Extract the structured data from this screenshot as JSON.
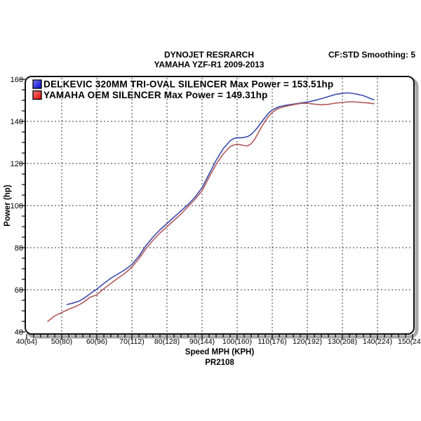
{
  "header": {
    "smoothing_label": "CF:STD Smoothing: 5"
  },
  "chart_data": {
    "type": "line",
    "title": "DYNOJET RESRARCH",
    "subtitle": "YAMAHA YZF-R1 2009-2013",
    "xlabel": "Speed MPH (KPH)",
    "ylabel": "Power (hp)",
    "run_id": "PR2108",
    "xlim": [
      40,
      150
    ],
    "ylim": [
      40,
      160
    ],
    "x_tick_values": [
      40,
      50,
      60,
      70,
      80,
      90,
      100,
      110,
      120,
      130,
      140,
      150
    ],
    "x_tick_labels": [
      "40(64)",
      "50(80)",
      "60(96)",
      "70(112)",
      "80(128)",
      "90(144)",
      "100(160)",
      "110(176)",
      "120(192)",
      "130(208)",
      "140(224)",
      "150(240)"
    ],
    "y_tick_values": [
      40,
      60,
      80,
      100,
      120,
      140,
      160
    ],
    "x_minor_step": 2,
    "y_minor_step": 5,
    "grid": "dashed",
    "legend_position": "top-left",
    "series": [
      {
        "name": "DELKEVIC 320MM TRI-OVAL SILENCER",
        "legend_label": "DELKEVIC 320MM TRI-OVAL SILENCER  Max Power = 153.51hp",
        "max_power_hp": 153.51,
        "color": "#3a4aa8",
        "swatch": [
          "#7d7dff",
          "#0000c8"
        ],
        "points": [
          [
            51.5,
            53
          ],
          [
            52,
            53.2
          ],
          [
            53,
            53.6
          ],
          [
            54,
            54.1
          ],
          [
            55,
            54.7
          ],
          [
            56,
            55.6
          ],
          [
            57,
            56.8
          ],
          [
            58,
            58
          ],
          [
            59,
            59.2
          ],
          [
            60,
            60.3
          ],
          [
            62,
            63
          ],
          [
            64,
            65.5
          ],
          [
            66,
            67.5
          ],
          [
            68,
            69.5
          ],
          [
            70,
            72
          ],
          [
            72,
            76
          ],
          [
            74,
            81
          ],
          [
            76,
            85
          ],
          [
            78,
            88.5
          ],
          [
            80,
            91.5
          ],
          [
            82,
            94.5
          ],
          [
            84,
            97.5
          ],
          [
            86,
            100.5
          ],
          [
            88,
            104
          ],
          [
            90,
            108.5
          ],
          [
            92,
            115
          ],
          [
            94,
            121.5
          ],
          [
            96,
            127
          ],
          [
            98,
            130.8
          ],
          [
            99,
            131.8
          ],
          [
            100,
            132.3
          ],
          [
            101,
            132.2
          ],
          [
            102,
            132.4
          ],
          [
            103,
            132.8
          ],
          [
            104,
            133.8
          ],
          [
            105,
            135.5
          ],
          [
            106,
            137.5
          ],
          [
            107,
            139.8
          ],
          [
            108,
            142
          ],
          [
            109,
            144
          ],
          [
            110,
            145.4
          ],
          [
            111,
            146.3
          ],
          [
            112,
            147
          ],
          [
            114,
            147.7
          ],
          [
            116,
            148.2
          ],
          [
            118,
            148.7
          ],
          [
            120,
            149.2
          ],
          [
            122,
            149.9
          ],
          [
            124,
            150.8
          ],
          [
            126,
            151.8
          ],
          [
            128,
            152.8
          ],
          [
            130,
            153.3
          ],
          [
            131,
            153.5
          ],
          [
            132,
            153.5
          ],
          [
            134,
            153
          ],
          [
            136,
            152.2
          ],
          [
            137,
            151.6
          ],
          [
            138,
            150.8
          ],
          [
            139,
            150.3
          ]
        ]
      },
      {
        "name": "YAMAHA OEM SILENCER",
        "legend_label": "YAMAHA OEM SILENCER Max Power = 149.31hp",
        "max_power_hp": 149.31,
        "color": "#b35a5a",
        "swatch": [
          "#ff8080",
          "#dd0000"
        ],
        "points": [
          [
            46,
            45
          ],
          [
            47,
            46.3
          ],
          [
            48,
            47.6
          ],
          [
            49,
            48.4
          ],
          [
            50,
            49.2
          ],
          [
            51,
            50
          ],
          [
            52,
            50.8
          ],
          [
            53,
            51.4
          ],
          [
            54,
            52.1
          ],
          [
            55,
            52.9
          ],
          [
            56,
            53.9
          ],
          [
            57,
            55.1
          ],
          [
            58,
            56.4
          ],
          [
            59,
            57
          ],
          [
            60,
            57.6
          ],
          [
            62,
            60.5
          ],
          [
            64,
            63
          ],
          [
            66,
            65.5
          ],
          [
            68,
            67.8
          ],
          [
            70,
            70.8
          ],
          [
            72,
            74.8
          ],
          [
            74,
            79.5
          ],
          [
            76,
            83.5
          ],
          [
            78,
            87
          ],
          [
            80,
            90
          ],
          [
            82,
            93
          ],
          [
            84,
            96
          ],
          [
            86,
            99.5
          ],
          [
            88,
            103
          ],
          [
            90,
            107
          ],
          [
            92,
            113.5
          ],
          [
            94,
            119.5
          ],
          [
            96,
            124.5
          ],
          [
            98,
            128
          ],
          [
            99,
            128.8
          ],
          [
            100,
            129.2
          ],
          [
            101,
            128.9
          ],
          [
            102,
            128.5
          ],
          [
            103,
            128.4
          ],
          [
            104,
            129.4
          ],
          [
            105,
            131.5
          ],
          [
            106,
            134.5
          ],
          [
            107,
            137.5
          ],
          [
            108,
            140.2
          ],
          [
            109,
            142.5
          ],
          [
            110,
            144.2
          ],
          [
            111,
            145.5
          ],
          [
            112,
            146.3
          ],
          [
            114,
            147.2
          ],
          [
            116,
            147.9
          ],
          [
            118,
            148.5
          ],
          [
            120,
            148.6
          ],
          [
            122,
            148.2
          ],
          [
            124,
            147.9
          ],
          [
            126,
            148.1
          ],
          [
            128,
            148.7
          ],
          [
            130,
            149
          ],
          [
            132,
            149.3
          ],
          [
            133,
            149.3
          ],
          [
            134,
            149.2
          ],
          [
            136,
            148.9
          ],
          [
            137,
            148.8
          ],
          [
            138,
            148.6
          ],
          [
            139,
            148.4
          ]
        ]
      }
    ]
  }
}
